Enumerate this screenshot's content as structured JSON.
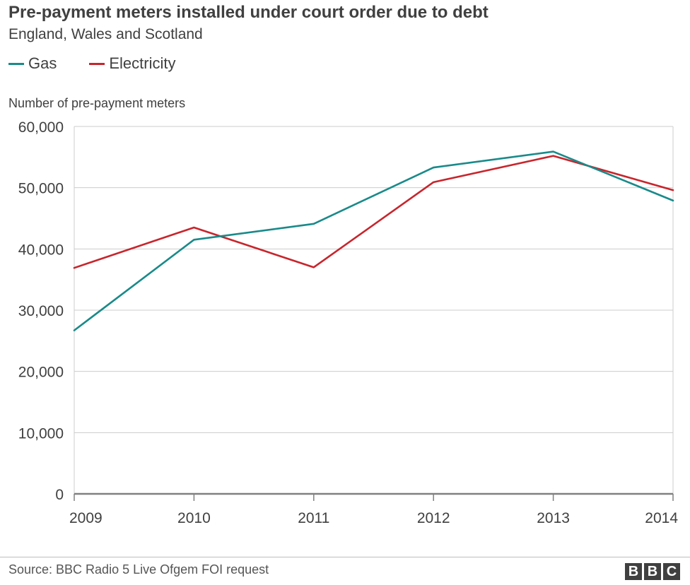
{
  "title": "Pre-payment meters installed under court order due to debt",
  "subtitle": "England, Wales and Scotland",
  "ylabel": "Number of pre-payment meters",
  "source": "Source: BBC Radio 5 Live Ofgem FOI request",
  "logo_letters": [
    "B",
    "B",
    "C"
  ],
  "colors": {
    "gas": "#1a8a8a",
    "electricity": "#c8252c",
    "grid": "#cccccc",
    "axis": "#808080"
  },
  "chart_data": {
    "type": "line",
    "title": "Pre-payment meters installed under court order due to debt",
    "subtitle": "England, Wales and Scotland",
    "ylabel": "Number of pre-payment meters",
    "xlabel": "",
    "x": [
      "2009",
      "2010",
      "2011",
      "2012",
      "2013",
      "2014"
    ],
    "ylim": [
      0,
      60000
    ],
    "yticks": [
      0,
      10000,
      20000,
      30000,
      40000,
      50000,
      60000
    ],
    "ytick_labels": [
      "0",
      "10,000",
      "20,000",
      "30,000",
      "40,000",
      "50,000",
      "60,000"
    ],
    "grid": true,
    "legend": "top-left",
    "series": [
      {
        "name": "Gas",
        "color": "#1a8a8a",
        "values": [
          26700,
          41500,
          44100,
          53300,
          55900,
          47900
        ]
      },
      {
        "name": "Electricity",
        "color": "#c8252c",
        "values": [
          36900,
          43500,
          37000,
          50900,
          55200,
          49600
        ]
      }
    ]
  }
}
